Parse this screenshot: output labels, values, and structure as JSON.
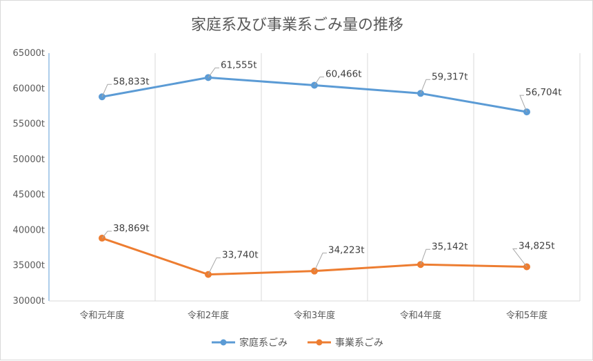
{
  "chart_data": {
    "type": "line",
    "title": "家庭系及び事業系ごみ量の推移",
    "categories": [
      "令和元年度",
      "令和2年度",
      "令和3年度",
      "令和4年度",
      "令和5年度"
    ],
    "ylim": [
      30000,
      65000
    ],
    "yticks": [
      30000,
      35000,
      40000,
      45000,
      50000,
      55000,
      60000,
      65000
    ],
    "ytick_labels": [
      "30000t",
      "35000t",
      "40000t",
      "45000t",
      "50000t",
      "55000t",
      "60000t",
      "65000t"
    ],
    "grid": "vertical",
    "legend": "bottom",
    "series": [
      {
        "name": "家庭系ごみ",
        "color": "#5b9bd5",
        "values": [
          58833,
          61555,
          60466,
          59317,
          56704
        ],
        "labels": [
          "58,833t",
          "61,555t",
          "60,466t",
          "59,317t",
          "56,704t"
        ]
      },
      {
        "name": "事業系ごみ",
        "color": "#ed7d31",
        "values": [
          38869,
          33740,
          34223,
          35142,
          34825
        ],
        "labels": [
          "38,869t",
          "33,740t",
          "34,223t",
          "35,142t",
          "34,825t"
        ]
      }
    ]
  }
}
